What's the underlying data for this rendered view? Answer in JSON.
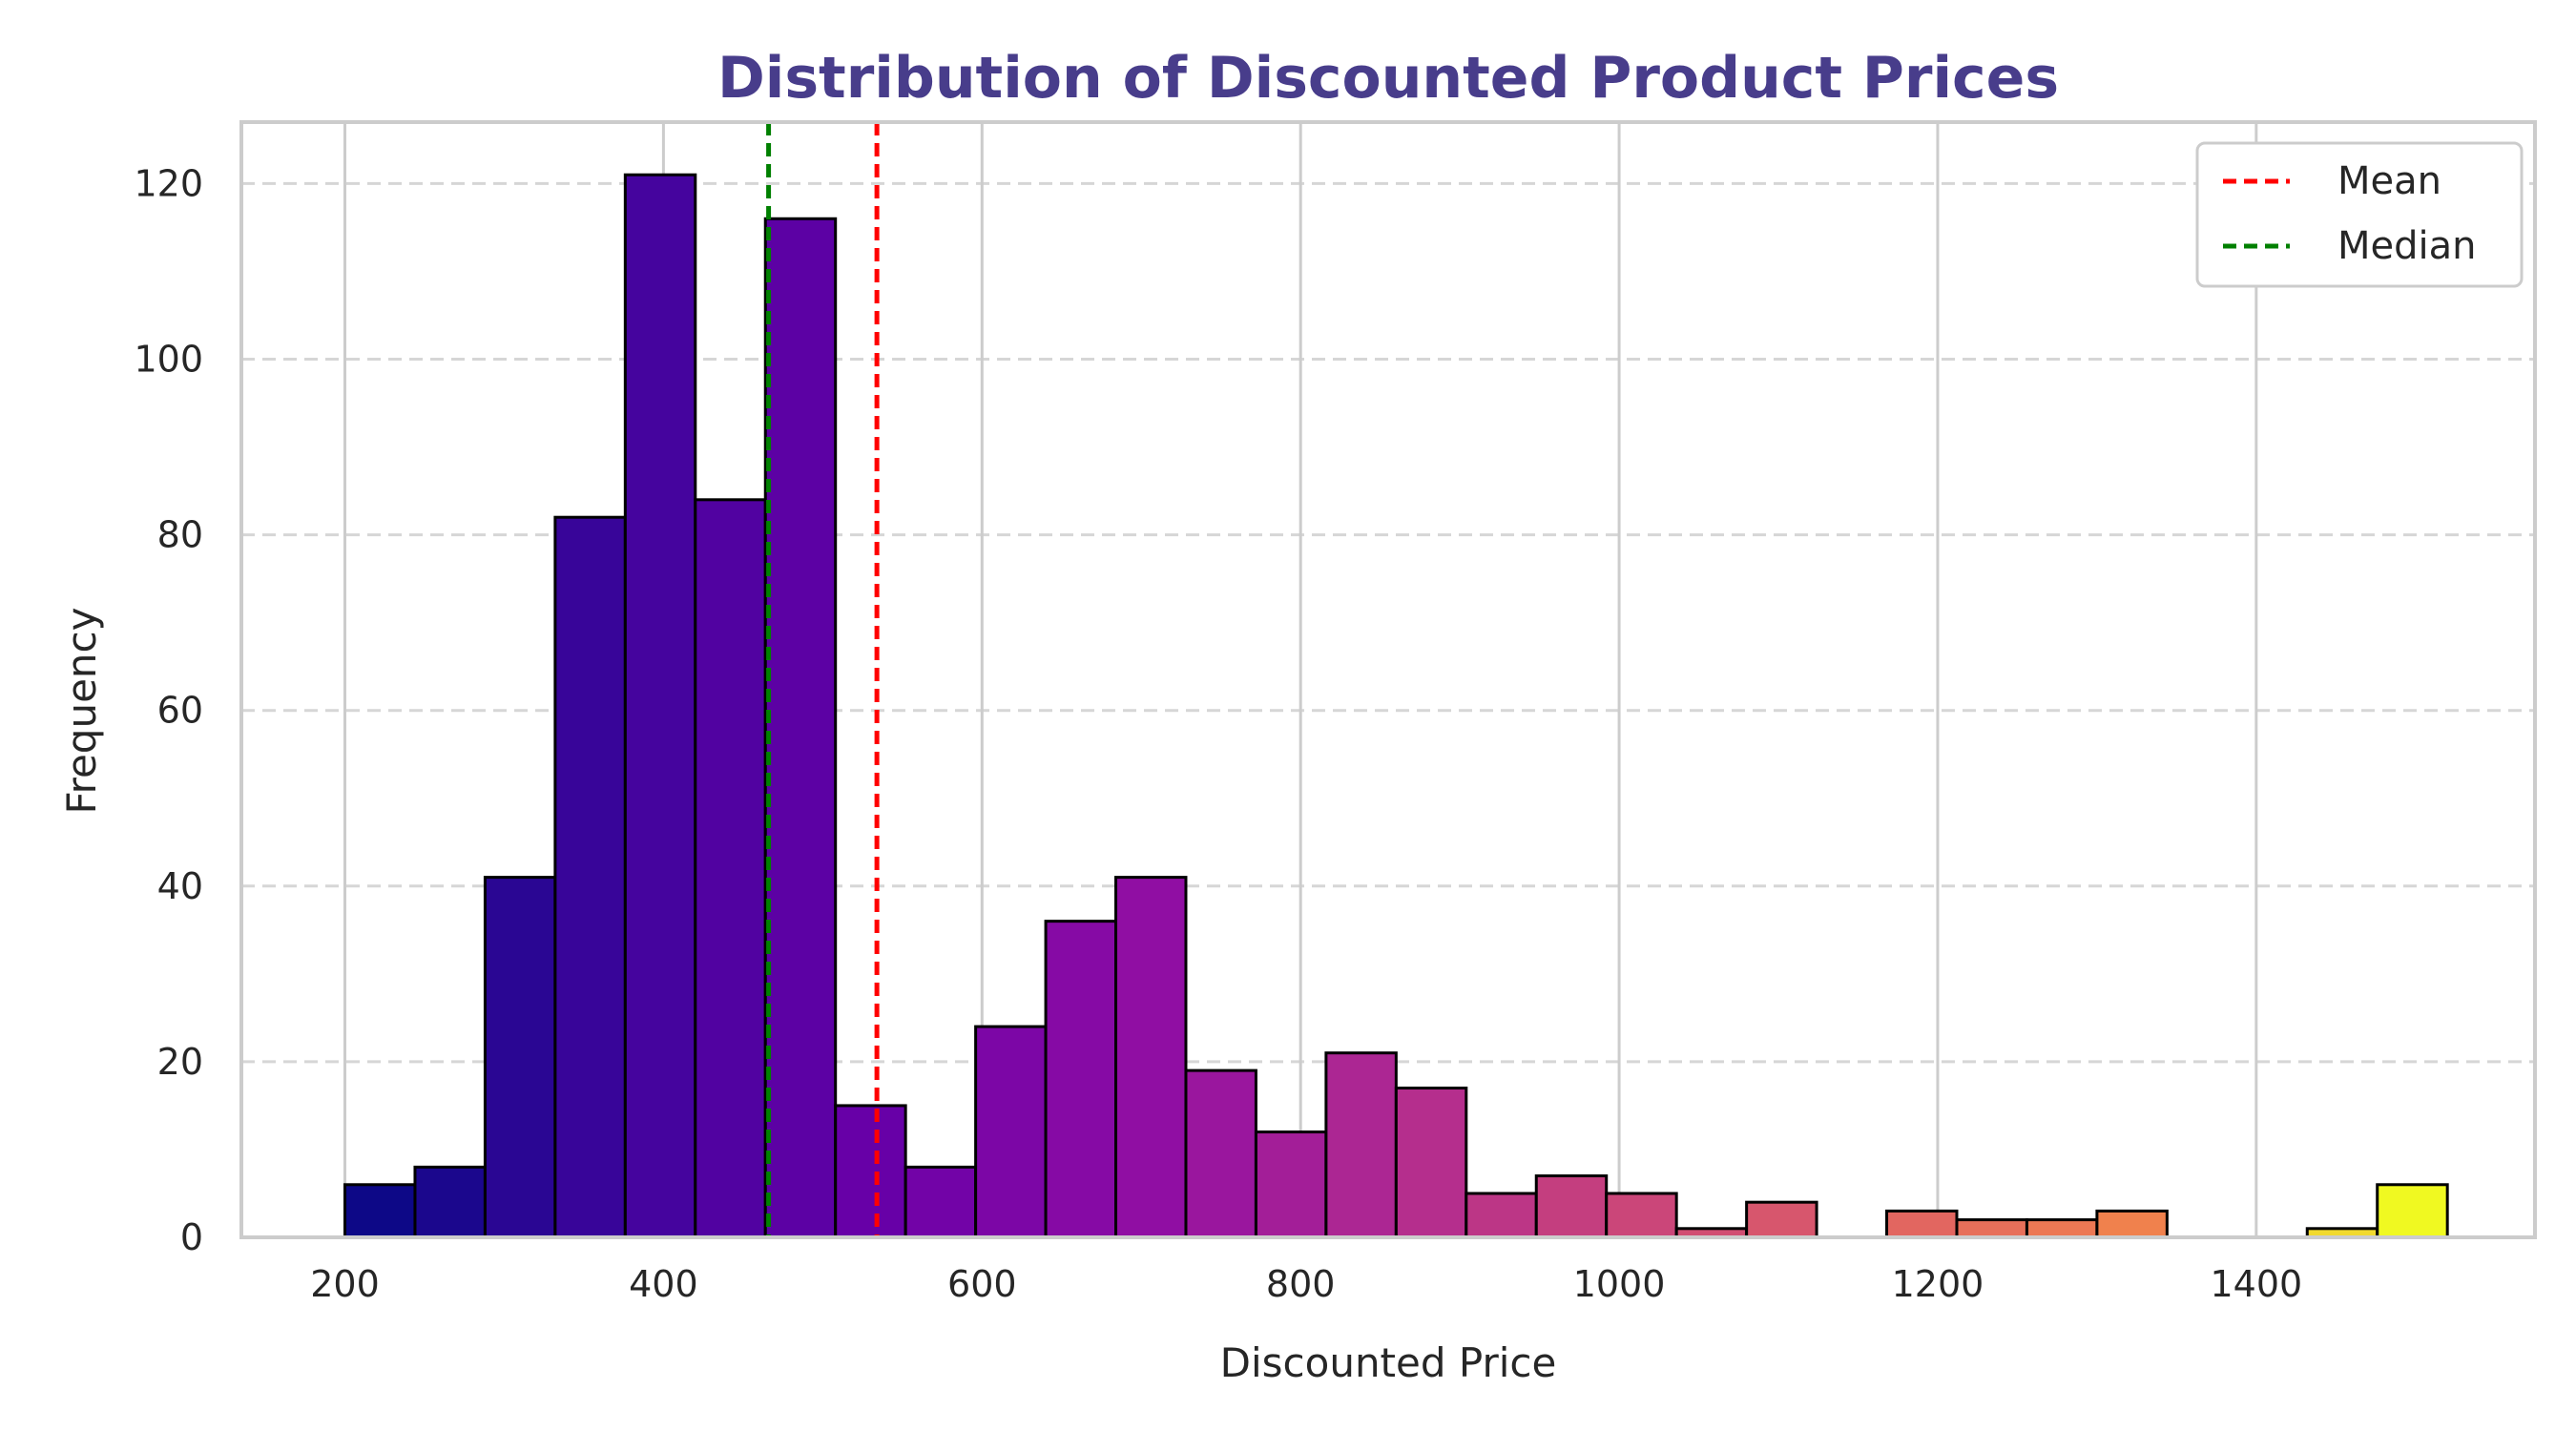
{
  "chart_data": {
    "type": "bar",
    "title": "Distribution of Discounted Product Prices",
    "title_color": "#483D8B",
    "xlabel": "Discounted Price",
    "ylabel": "Frequency",
    "xlim": [
      135,
      1575
    ],
    "ylim": [
      0,
      127
    ],
    "x_ticks": [
      200,
      400,
      600,
      800,
      1000,
      1200,
      1400
    ],
    "y_ticks": [
      0,
      20,
      40,
      60,
      80,
      100,
      120
    ],
    "grid": {
      "x": true,
      "y": true,
      "y_style": "dashed"
    },
    "bin_start": 200,
    "bin_width": 44,
    "bin_counts": [
      6,
      8,
      41,
      82,
      121,
      84,
      116,
      15,
      8,
      24,
      36,
      41,
      19,
      12,
      21,
      17,
      5,
      7,
      5,
      1,
      4,
      0,
      3,
      2,
      2,
      3,
      0,
      0,
      1,
      6
    ],
    "colormap": "plasma",
    "edge_color": "#000000",
    "reference_lines": [
      {
        "name": "Mean",
        "x": 534,
        "color": "#ff0000",
        "style": "dashed"
      },
      {
        "name": "Median",
        "x": 466,
        "color": "#008000",
        "style": "dashed"
      }
    ],
    "legend_position": "top-right"
  }
}
